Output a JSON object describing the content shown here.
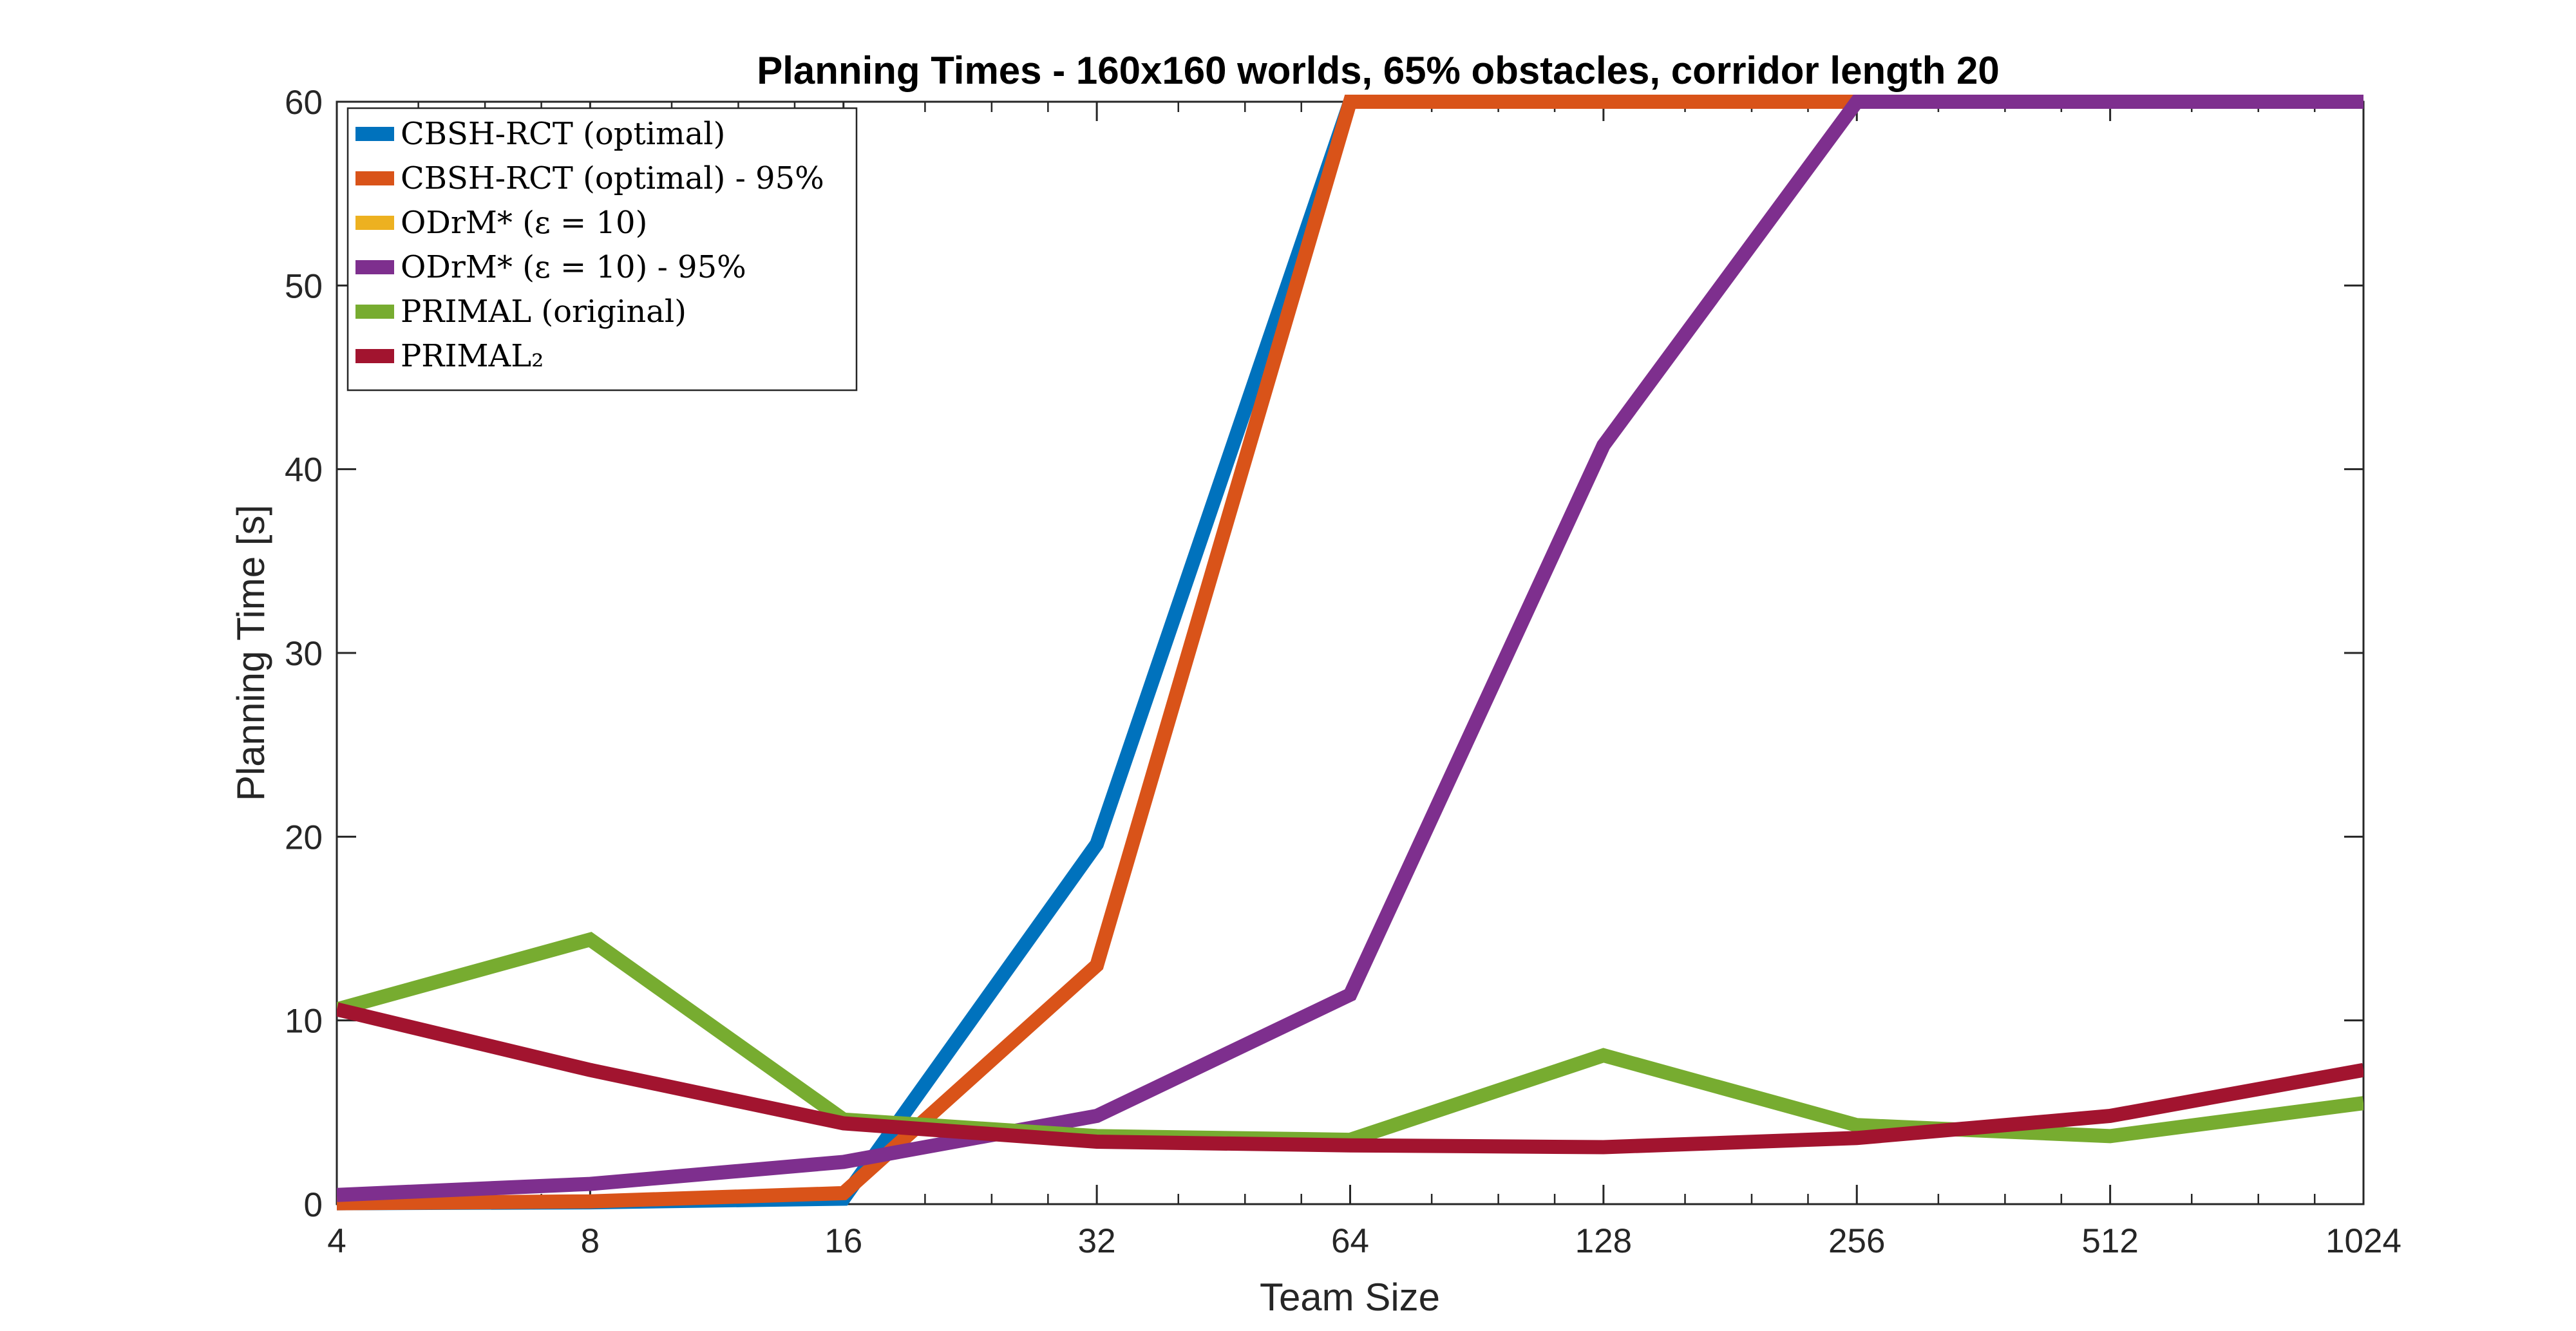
{
  "chart_data": {
    "type": "line",
    "title": "Planning Times - 160x160 worlds, 65% obstacles, corridor length 20",
    "xlabel": "Team Size",
    "ylabel": "Planning Time [s]",
    "x_scale": "log2",
    "x": [
      4,
      8,
      16,
      32,
      64,
      128,
      256,
      512,
      1024
    ],
    "xticks": [
      "4",
      "8",
      "16",
      "32",
      "64",
      "128",
      "256",
      "512",
      "1024"
    ],
    "xlim": [
      4,
      1024
    ],
    "ylim": [
      0,
      60
    ],
    "yticks": [
      "0",
      "10",
      "20",
      "30",
      "40",
      "50",
      "60"
    ],
    "grid": false,
    "legend_position": "top-left",
    "series": [
      {
        "name": "CBSH-RCT (optimal)",
        "color": "#0072BD",
        "values": [
          0.05,
          0.1,
          0.3,
          19.6,
          60,
          null,
          null,
          null,
          null
        ]
      },
      {
        "name": "CBSH-RCT (optimal) - 95%",
        "color": "#D95319",
        "values": [
          0.05,
          0.15,
          0.6,
          13.0,
          60,
          60,
          60,
          null,
          null
        ]
      },
      {
        "name": "ODrM* (ε = 10)",
        "color": "#EDB120",
        "values": [
          null,
          null,
          null,
          null,
          null,
          null,
          null,
          null,
          null
        ]
      },
      {
        "name": "ODrM* (ε = 10) - 95%",
        "color": "#7E2F8E",
        "values": [
          0.5,
          1.1,
          2.3,
          4.8,
          11.4,
          41.3,
          60,
          60,
          60
        ]
      },
      {
        "name": "PRIMAL (original)",
        "color": "#77AC30",
        "values": [
          10.6,
          14.4,
          4.6,
          3.7,
          3.5,
          8.1,
          4.3,
          3.7,
          5.5
        ]
      },
      {
        "name": "PRIMAL₂",
        "color": "#A2142F",
        "values": [
          10.6,
          7.3,
          4.4,
          3.4,
          3.2,
          3.1,
          3.6,
          4.8,
          7.3
        ]
      }
    ]
  }
}
